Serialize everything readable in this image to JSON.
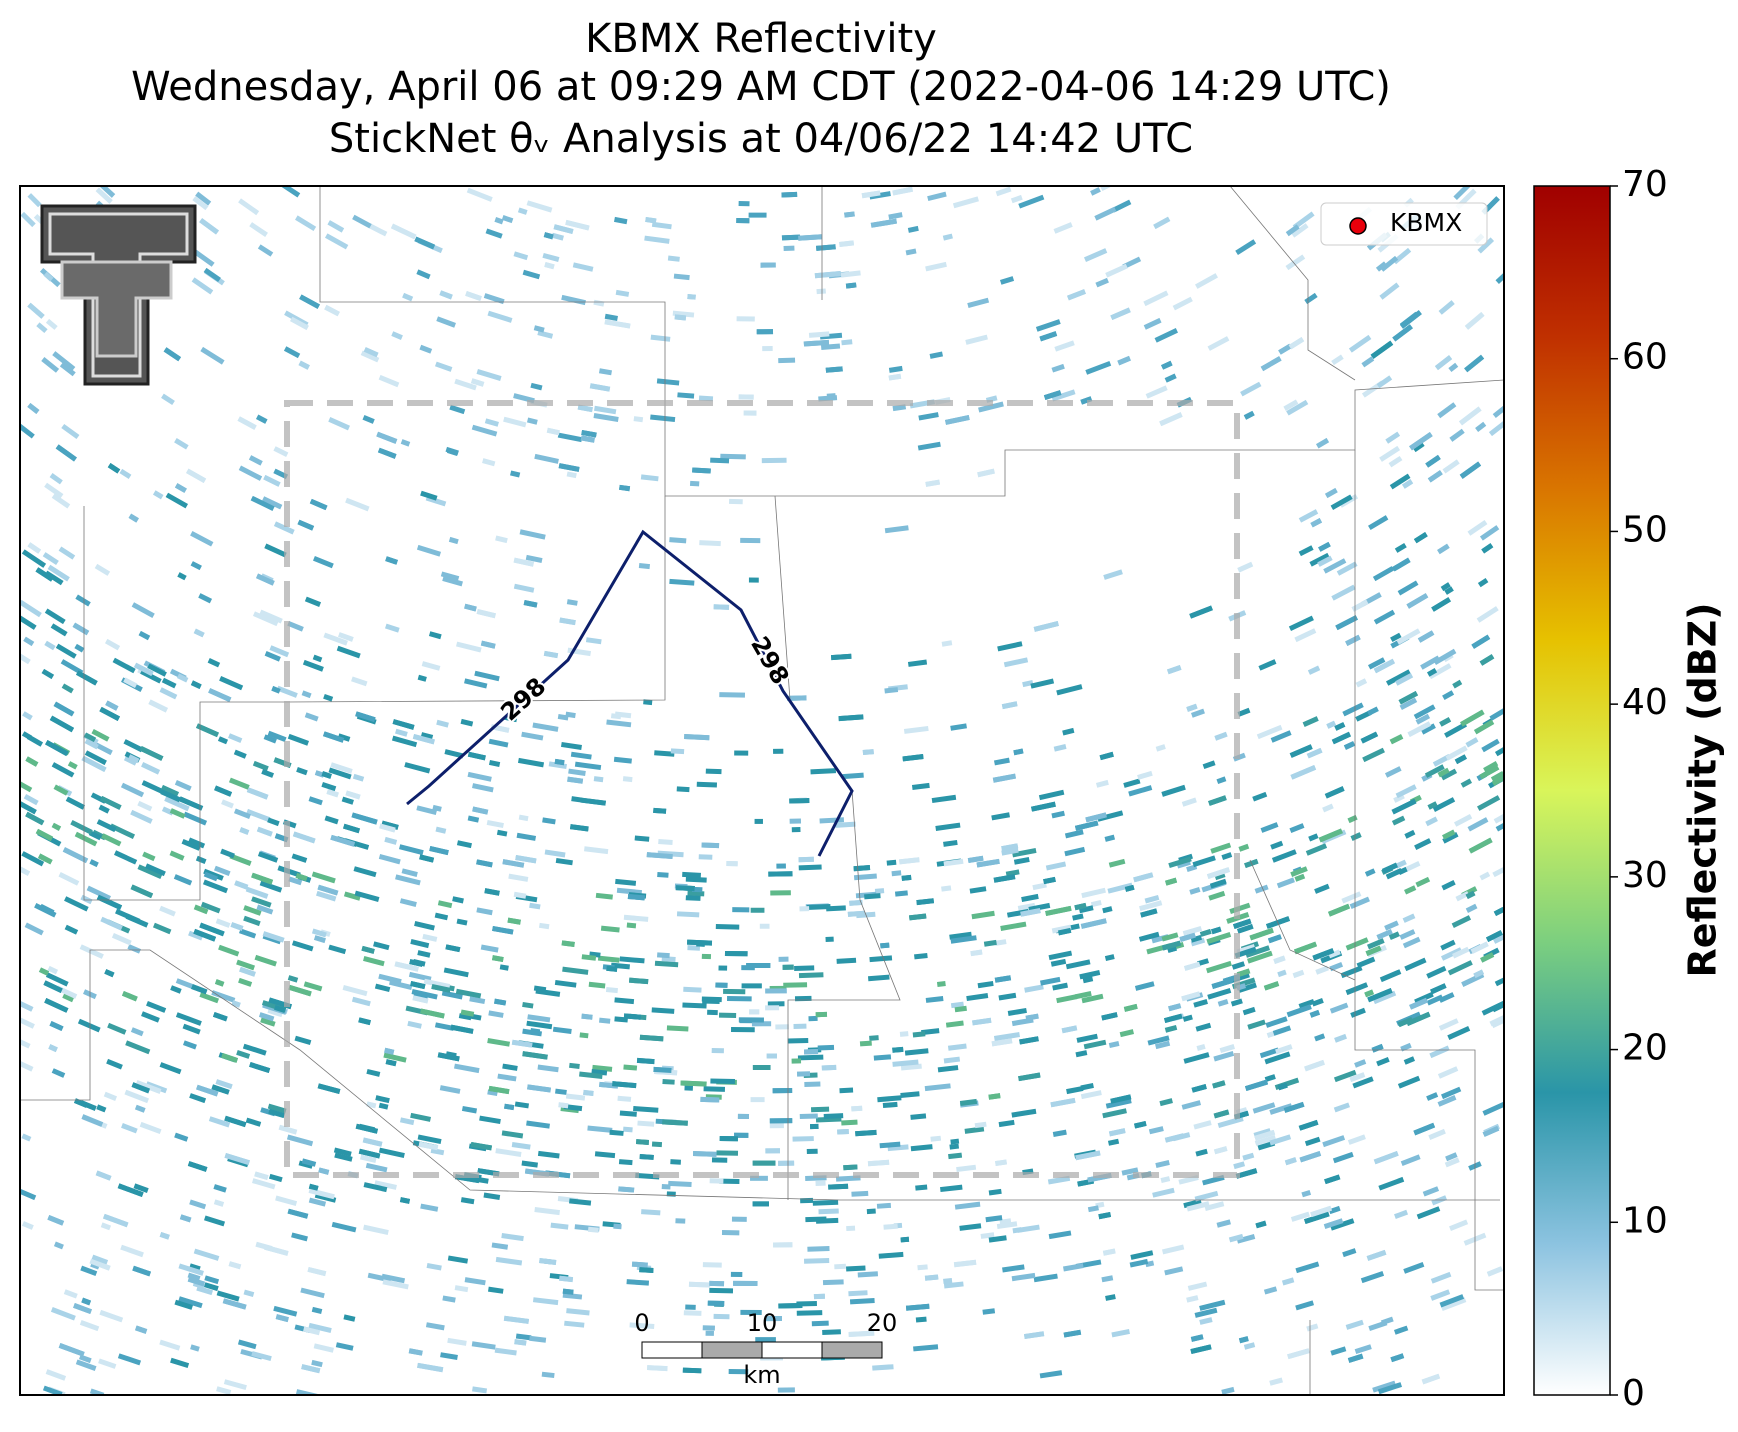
{
  "header": {
    "title_lines": [
      "KBMX Reflectivity",
      "Wednesday, April 06 at 09:29 AM CDT (2022-04-06 14:29 UTC)",
      "StickNet θᵥ Analysis at 04/06/22 14:42 UTC"
    ]
  },
  "map": {
    "legend": {
      "label": "KBMX",
      "color": "#e8000b"
    },
    "contour_labels": [
      298,
      298
    ],
    "contour_color": "#0d1f6b",
    "scale_bar": {
      "ticks": [
        0,
        10,
        20
      ],
      "unit": "km"
    }
  },
  "colorbar": {
    "label": "Reflectivity (dBZ)",
    "lim": [
      0,
      70
    ],
    "ticks": [
      0,
      10,
      20,
      30,
      40,
      50,
      60,
      70
    ],
    "colors": [
      "#ffffff",
      "#8cc3e0",
      "#2a95a8",
      "#7ccf7f",
      "#d9f55a",
      "#e6c100",
      "#d97500",
      "#c03000",
      "#a00000"
    ]
  }
}
